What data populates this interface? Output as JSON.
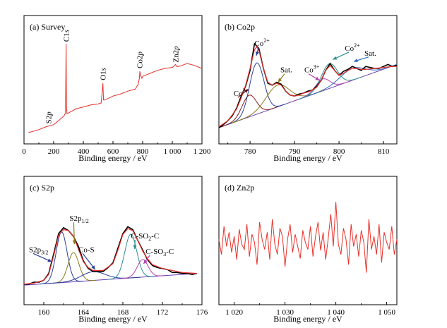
{
  "colors": {
    "spectrum": "#e8302a",
    "raw": "#000000",
    "background": "#6a3fb5",
    "co3_low": "#8a1c1c",
    "co2_main": "#2a3f9a",
    "sat_low": "#8a7a1a",
    "co3_high": "#b040b0",
    "co2_high": "#2f8f8f",
    "sat_high": "#2a6fc0",
    "s2p32": "#2a3f9a",
    "s2p12": "#8a7a1a",
    "cos": "#2a3f9a",
    "cso2c": "#2f8f8f",
    "cso3c": "#b040b0"
  },
  "chart_data": [
    {
      "id": "a",
      "type": "line",
      "title": "(a) Survey",
      "xlabel": "Binding energy / eV",
      "xlim": [
        0,
        1200
      ],
      "xticks": [
        0,
        200,
        400,
        600,
        800,
        1000,
        1200
      ],
      "xtick_labels": [
        "0",
        "200",
        "400",
        "600",
        "800",
        "1 000",
        "1 200"
      ],
      "ylim": [
        0,
        100
      ],
      "grid": false,
      "series": [
        {
          "x": [
            30,
            100,
            150,
            200,
            240,
            270,
            280,
            284,
            286,
            290,
            300,
            350,
            400,
            450,
            500,
            520,
            528,
            532,
            536,
            545,
            600,
            650,
            700,
            750,
            770,
            778,
            781,
            786,
            795,
            800,
            850,
            900,
            950,
            1000,
            1022,
            1030,
            1045,
            1100,
            1150,
            1200
          ],
          "y": [
            5,
            8,
            11,
            13,
            18,
            22,
            25,
            95,
            32,
            24,
            25,
            29,
            31,
            33,
            34,
            35,
            48,
            55,
            38,
            38,
            42,
            44,
            47,
            49,
            54,
            60,
            67,
            63,
            60,
            62,
            65,
            68,
            70,
            71,
            74,
            72,
            72,
            75,
            73,
            70
          ]
        }
      ],
      "annotations": [
        {
          "label": "S2p",
          "x": 165,
          "y": 14
        },
        {
          "label": "C1s",
          "x": 284,
          "y": 97
        },
        {
          "label": "O1s",
          "x": 530,
          "y": 58
        },
        {
          "label": "Co2p",
          "x": 778,
          "y": 70
        },
        {
          "label": "Zn2p",
          "x": 1022,
          "y": 76
        }
      ]
    },
    {
      "id": "b",
      "type": "line",
      "title": "(b) Co2p",
      "xlabel": "Binding energy / eV",
      "xlim": [
        773,
        813
      ],
      "xticks": [
        780,
        790,
        800,
        810
      ],
      "xtick_labels": [
        "780",
        "790",
        "800",
        "810"
      ],
      "ylim": [
        0,
        100
      ],
      "grid": false,
      "raw": {
        "x": [
          773,
          774,
          775,
          776,
          777,
          778,
          779,
          780,
          781,
          782,
          783,
          784,
          785,
          786,
          787,
          788,
          789,
          790,
          791,
          792,
          793,
          794,
          795,
          796,
          797,
          798,
          799,
          800,
          801,
          802,
          803,
          804,
          805,
          806,
          807,
          808,
          809,
          810,
          811,
          812,
          813
        ],
        "y": [
          10,
          13,
          17,
          22,
          30,
          42,
          52,
          68,
          95,
          90,
          70,
          55,
          53,
          56,
          54,
          47,
          43,
          42,
          44,
          45,
          47,
          48,
          52,
          58,
          68,
          75,
          68,
          63,
          67,
          69,
          72,
          70,
          68,
          72,
          71,
          70,
          70,
          72,
          74,
          72,
          73
        ]
      },
      "envelope": {
        "x": [
          773,
          775,
          777,
          778,
          779,
          780,
          781,
          781.5,
          782,
          783,
          784,
          785,
          786,
          787,
          788,
          789,
          790,
          791,
          792,
          793,
          794,
          795,
          796,
          797,
          798,
          799,
          800,
          801,
          802,
          803,
          804,
          805,
          806,
          808,
          810,
          812,
          813
        ],
        "y": [
          11,
          17,
          29,
          40,
          53,
          70,
          89,
          92,
          88,
          70,
          56,
          53,
          55,
          53,
          47,
          43,
          42,
          43,
          45,
          46,
          48,
          51,
          58,
          68,
          73,
          68,
          63,
          65,
          68,
          70,
          70,
          69,
          69,
          70,
          71,
          72,
          72
        ]
      },
      "baseline": {
        "x": [
          773,
          813
        ],
        "y": [
          10,
          74
        ]
      },
      "peaks": [
        {
          "name": "Co3+",
          "center": 779.8,
          "height": 22,
          "width": 1.6,
          "color_key": "co3_low"
        },
        {
          "name": "Co2+",
          "center": 781.5,
          "height": 52,
          "width": 1.6,
          "color_key": "co2_main"
        },
        {
          "name": "Sat.",
          "center": 786.2,
          "height": 22,
          "width": 2.6,
          "color_key": "sat_low"
        },
        {
          "name": "Co3+",
          "center": 796.3,
          "height": 12,
          "width": 1.6,
          "color_key": "co3_high"
        },
        {
          "name": "Co2+",
          "center": 797.8,
          "height": 25,
          "width": 1.8,
          "color_key": "co2_high"
        },
        {
          "name": "Sat.",
          "center": 803.0,
          "height": 12,
          "width": 2.8,
          "color_key": "sat_high"
        }
      ],
      "annotations": [
        {
          "label": "Co",
          "sup": "3+",
          "lx": 776.3,
          "ly": 42,
          "ax": 779.6,
          "ay": 49,
          "color_key": "co3_low"
        },
        {
          "label": "Co",
          "sup": "2+",
          "lx": 781.0,
          "ly": 93,
          "ax": 781.4,
          "ay": 83,
          "color_key": "co2_main"
        },
        {
          "label": "Sat.",
          "lx": 786.8,
          "ly": 66,
          "ax": 786.3,
          "ay": 56,
          "color_key": "sat_low"
        },
        {
          "label": "Co",
          "sup": "3+",
          "lx": 792.2,
          "ly": 66,
          "ax": 795.6,
          "ay": 58,
          "color_key": "co3_high"
        },
        {
          "label": "Co",
          "sup": "2+",
          "lx": 801.3,
          "ly": 88,
          "ax": 798.6,
          "ay": 79,
          "color_key": "co2_high"
        },
        {
          "label": "Sat.",
          "lx": 805.7,
          "ly": 83,
          "ax": 803.3,
          "ay": 77,
          "color_key": "sat_high"
        }
      ]
    },
    {
      "id": "c",
      "type": "line",
      "title": "(c) S2p",
      "xlabel": "Binding energy / eV",
      "xlim": [
        158,
        176
      ],
      "xticks": [
        160,
        164,
        168,
        172,
        176
      ],
      "xtick_labels": [
        "160",
        "164",
        "168",
        "172",
        "176"
      ],
      "ylim": [
        0,
        100
      ],
      "grid": false,
      "raw": {
        "x": [
          158,
          158.5,
          159,
          159.5,
          160,
          160.5,
          161,
          161.5,
          162,
          162.5,
          163,
          163.5,
          164,
          164.5,
          165,
          165.5,
          166,
          166.5,
          167,
          167.5,
          168,
          168.5,
          169,
          169.5,
          170,
          170.5,
          171,
          171.5,
          172,
          172.5,
          173,
          173.5,
          174,
          174.5,
          175,
          175.5
        ],
        "y": [
          11,
          11,
          13,
          13,
          15,
          22,
          42,
          63,
          69,
          66,
          60,
          50,
          35,
          27,
          24,
          24,
          24,
          28,
          33,
          48,
          63,
          70,
          67,
          56,
          46,
          36,
          30,
          28,
          27,
          26,
          23,
          23,
          22,
          22,
          21,
          22
        ]
      },
      "envelope": {
        "x": [
          158,
          159,
          160,
          160.5,
          161,
          161.5,
          162,
          162.5,
          163,
          163.5,
          164,
          164.5,
          165,
          166,
          167,
          167.5,
          168,
          168.5,
          169,
          169.5,
          170,
          170.5,
          171,
          172,
          173,
          174,
          175.5
        ],
        "y": [
          11,
          12,
          15,
          21,
          40,
          61,
          67,
          66,
          60,
          47,
          34,
          28,
          25,
          25,
          32,
          46,
          62,
          68,
          66,
          56,
          45,
          37,
          31,
          27,
          25,
          23,
          22
        ]
      },
      "baseline": {
        "x": [
          158,
          175.5
        ],
        "y": [
          10,
          22
        ]
      },
      "peaks": [
        {
          "name": "S2p3/2",
          "center": 161.8,
          "height": 52,
          "width": 0.55,
          "color_key": "s2p32"
        },
        {
          "name": "S2p1/2",
          "center": 163.0,
          "height": 30,
          "width": 0.55,
          "color_key": "s2p12"
        },
        {
          "name": "Co-S",
          "center": 165.0,
          "height": 9,
          "width": 1.2,
          "color_key": "cos"
        },
        {
          "name": "C-SO2-C",
          "center": 168.8,
          "height": 45,
          "width": 0.6,
          "color_key": "cso2c"
        },
        {
          "name": "C-SO3-C",
          "center": 170.0,
          "height": 18,
          "width": 0.55,
          "color_key": "cso3c"
        }
      ],
      "annotations": [
        {
          "label": "S2p",
          "sub": "3/2",
          "lx": 158.5,
          "ly": 44,
          "ax": 160.8,
          "ay": 34,
          "color_key": "s2p32"
        },
        {
          "label": "S2p",
          "sub": "1/2",
          "lx": 162.6,
          "ly": 76,
          "ax": 163.1,
          "ay": 52,
          "color_key": "s2p12"
        },
        {
          "label": "Co-S",
          "lx": 163.5,
          "ly": 44,
          "ax": 165.2,
          "ay": 26,
          "color_key": "cos"
        },
        {
          "label": "C-SO",
          "sub": "2",
          "tail": "-C",
          "lx": 168.8,
          "ly": 58,
          "ax": 169.2,
          "ay": 47,
          "color_key": "cso2c"
        },
        {
          "label": "C-SO",
          "sub": "3",
          "tail": "-C",
          "lx": 170.3,
          "ly": 42,
          "ax": 170.1,
          "ay": 32,
          "color_key": "cso3c"
        }
      ]
    },
    {
      "id": "d",
      "type": "line",
      "title": "(d) Zn2p",
      "xlabel": "Binding energy / eV",
      "xlim": [
        1017,
        1052
      ],
      "xticks": [
        1020,
        1030,
        1040,
        1050
      ],
      "xtick_labels": [
        "1 020",
        "1 030",
        "1 040",
        "1 050"
      ],
      "ylim": [
        0,
        100
      ],
      "grid": false,
      "series": [
        {
          "x": [
            1017,
            1017.5,
            1018,
            1018.5,
            1019,
            1019.5,
            1020,
            1020.5,
            1021,
            1021.5,
            1022,
            1022.5,
            1023,
            1023.5,
            1024,
            1024.5,
            1025,
            1025.5,
            1026,
            1026.5,
            1027,
            1027.5,
            1028,
            1028.5,
            1029,
            1029.5,
            1030,
            1030.5,
            1031,
            1031.5,
            1032,
            1032.5,
            1033,
            1033.5,
            1034,
            1034.5,
            1035,
            1035.5,
            1036,
            1036.5,
            1037,
            1037.5,
            1038,
            1038.5,
            1039,
            1039.5,
            1040,
            1040.5,
            1041,
            1041.5,
            1042,
            1042.5,
            1043,
            1043.5,
            1044,
            1044.5,
            1045,
            1045.5,
            1046,
            1046.5,
            1047,
            1047.5,
            1048,
            1048.5,
            1049,
            1049.5,
            1050,
            1050.5,
            1051,
            1051.5,
            1052
          ],
          "y": [
            55,
            40,
            68,
            48,
            62,
            42,
            58,
            35,
            65,
            50,
            45,
            70,
            38,
            60,
            52,
            30,
            72,
            55,
            45,
            62,
            35,
            75,
            50,
            40,
            66,
            58,
            28,
            55,
            70,
            42,
            60,
            48,
            36,
            64,
            52,
            45,
            68,
            38,
            58,
            72,
            44,
            62,
            35,
            56,
            80,
            48,
            92,
            50,
            40,
            66,
            55,
            30,
            70,
            48,
            60,
            38,
            64,
            52,
            22,
            75,
            45,
            58,
            40,
            70,
            32,
            62,
            52,
            45,
            68,
            40,
            55
          ]
        }
      ]
    }
  ]
}
